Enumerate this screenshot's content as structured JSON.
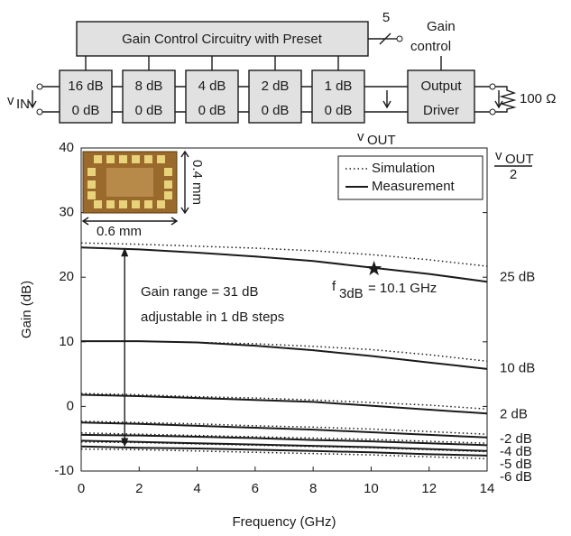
{
  "diagram": {
    "control_block": "Gain Control Circuitry with Preset",
    "bus_width": "5",
    "control_label": [
      "Gain",
      "control"
    ],
    "stages": [
      [
        "16 dB",
        "0 dB"
      ],
      [
        "8 dB",
        "0 dB"
      ],
      [
        "4 dB",
        "0 dB"
      ],
      [
        "2 dB",
        "0 dB"
      ],
      [
        "1 dB",
        "0 dB"
      ]
    ],
    "output_driver": [
      "Output",
      "Driver"
    ],
    "input": {
      "symbol": "v",
      "subscript": "IN"
    },
    "output": {
      "symbol": "v",
      "subscript": "OUT"
    },
    "load": "100 Ω",
    "half_output": {
      "symbol": "v",
      "subscript": "OUT",
      "denominator": "2"
    }
  },
  "chart_data": {
    "type": "line",
    "x_label": "Frequency (GHz)",
    "y_label": "Gain (dB)",
    "xlim": [
      0,
      14
    ],
    "xticks": [
      0,
      2,
      4,
      6,
      8,
      10,
      12,
      14
    ],
    "ylim": [
      -10,
      40
    ],
    "yticks": [
      -10,
      0,
      10,
      20,
      30,
      40
    ],
    "x": [
      0,
      2,
      4,
      6,
      8,
      10,
      12,
      14
    ],
    "legend": [
      {
        "name": "Simulation",
        "dash": "dotted"
      },
      {
        "name": "Measurement",
        "dash": "solid"
      }
    ],
    "color": "#1a1a1a",
    "curves": [
      {
        "label": "25 dB",
        "simulation": [
          25.3,
          25.1,
          24.8,
          24.5,
          24.1,
          23.5,
          22.7,
          21.7
        ],
        "measurement": [
          24.6,
          24.3,
          23.8,
          23.2,
          22.5,
          21.5,
          20.5,
          19.3
        ]
      },
      {
        "label": "10 dB",
        "simulation": [
          10.1,
          10.1,
          9.9,
          9.7,
          9.3,
          8.8,
          8.0,
          7.0
        ],
        "measurement": [
          10.1,
          10.1,
          9.9,
          9.4,
          8.7,
          7.8,
          6.8,
          5.8
        ]
      },
      {
        "label": "2 dB",
        "simulation": [
          2.0,
          1.8,
          1.5,
          1.3,
          1.0,
          0.6,
          0.2,
          -0.4
        ],
        "measurement": [
          1.8,
          1.6,
          1.3,
          1.0,
          0.7,
          0.1,
          -0.5,
          -1.1
        ]
      },
      {
        "label": "-2 dB",
        "simulation": [
          -2.3,
          -2.5,
          -2.7,
          -3.0,
          -3.2,
          -3.5,
          -3.9,
          -4.3
        ],
        "measurement": [
          -2.5,
          -2.7,
          -3.0,
          -3.3,
          -3.6,
          -4.0,
          -4.4,
          -4.8
        ]
      },
      {
        "label": "-4 dB",
        "simulation": [
          -4.1,
          -4.3,
          -4.5,
          -4.7,
          -4.9,
          -5.1,
          -5.4,
          -5.7
        ],
        "measurement": [
          -4.4,
          -4.5,
          -4.7,
          -4.9,
          -5.2,
          -5.4,
          -5.7,
          -6.0
        ]
      },
      {
        "label": "-5 dB",
        "simulation": [
          -5.5,
          -5.6,
          -5.8,
          -6.0,
          -6.2,
          -6.4,
          -6.7,
          -7.0
        ],
        "measurement": [
          -5.3,
          -5.5,
          -5.7,
          -5.9,
          -6.1,
          -6.3,
          -6.6,
          -6.9
        ]
      },
      {
        "label": "-6 dB",
        "simulation": [
          -6.6,
          -6.7,
          -6.9,
          -7.1,
          -7.3,
          -7.5,
          -7.8,
          -8.1
        ],
        "measurement": [
          -6.2,
          -6.4,
          -6.5,
          -6.7,
          -6.9,
          -7.1,
          -7.4,
          -7.6
        ]
      }
    ],
    "f3db": {
      "symbol": "f",
      "subscript": "3dB",
      "text": "= 10.1 GHz",
      "x": 10.1,
      "y": 21.3
    },
    "gain_range": {
      "lines": [
        "Gain range = 31 dB",
        "adjustable in 1 dB steps"
      ],
      "x": 1.5,
      "y": [
        -6.3,
        24.6
      ]
    },
    "chip": {
      "width": "0.6 mm",
      "height": "0.4 mm"
    }
  }
}
